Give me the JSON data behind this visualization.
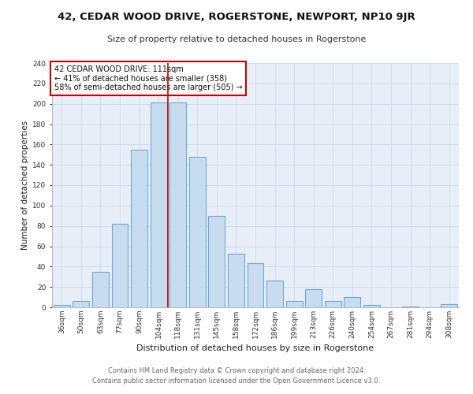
{
  "title": "42, CEDAR WOOD DRIVE, ROGERSTONE, NEWPORT, NP10 9JR",
  "subtitle": "Size of property relative to detached houses in Rogerstone",
  "xlabel": "Distribution of detached houses by size in Rogerstone",
  "ylabel": "Number of detached properties",
  "categories": [
    "36sqm",
    "50sqm",
    "63sqm",
    "77sqm",
    "90sqm",
    "104sqm",
    "118sqm",
    "131sqm",
    "145sqm",
    "158sqm",
    "172sqm",
    "186sqm",
    "199sqm",
    "213sqm",
    "226sqm",
    "240sqm",
    "254sqm",
    "267sqm",
    "281sqm",
    "294sqm",
    "308sqm"
  ],
  "values": [
    2,
    6,
    35,
    82,
    155,
    201,
    201,
    148,
    90,
    53,
    43,
    26,
    6,
    18,
    6,
    10,
    2,
    0,
    1,
    0,
    3
  ],
  "bar_color": "#c8dcf0",
  "bar_edge_color": "#6aaad4",
  "grid_color": "#cdd8e8",
  "background_color": "#e8eef8",
  "annotation_line1": "42 CEDAR WOOD DRIVE: 111sqm",
  "annotation_line2": "← 41% of detached houses are smaller (358)",
  "annotation_line3": "58% of semi-detached houses are larger (505) →",
  "annotation_box_color": "#ffffff",
  "annotation_box_edge_color": "#cc0000",
  "vline_x": 5.5,
  "vline_color": "#cc0000",
  "ylim": [
    0,
    240
  ],
  "yticks": [
    0,
    20,
    40,
    60,
    80,
    100,
    120,
    140,
    160,
    180,
    200,
    220,
    240
  ],
  "footer_line1": "Contains HM Land Registry data © Crown copyright and database right 2024.",
  "footer_line2": "Contains public sector information licensed under the Open Government Licence v3.0.",
  "title_fontsize": 9.5,
  "subtitle_fontsize": 8,
  "xlabel_fontsize": 8,
  "ylabel_fontsize": 7.5,
  "tick_fontsize": 6.5,
  "annotation_fontsize": 7,
  "footer_fontsize": 6
}
